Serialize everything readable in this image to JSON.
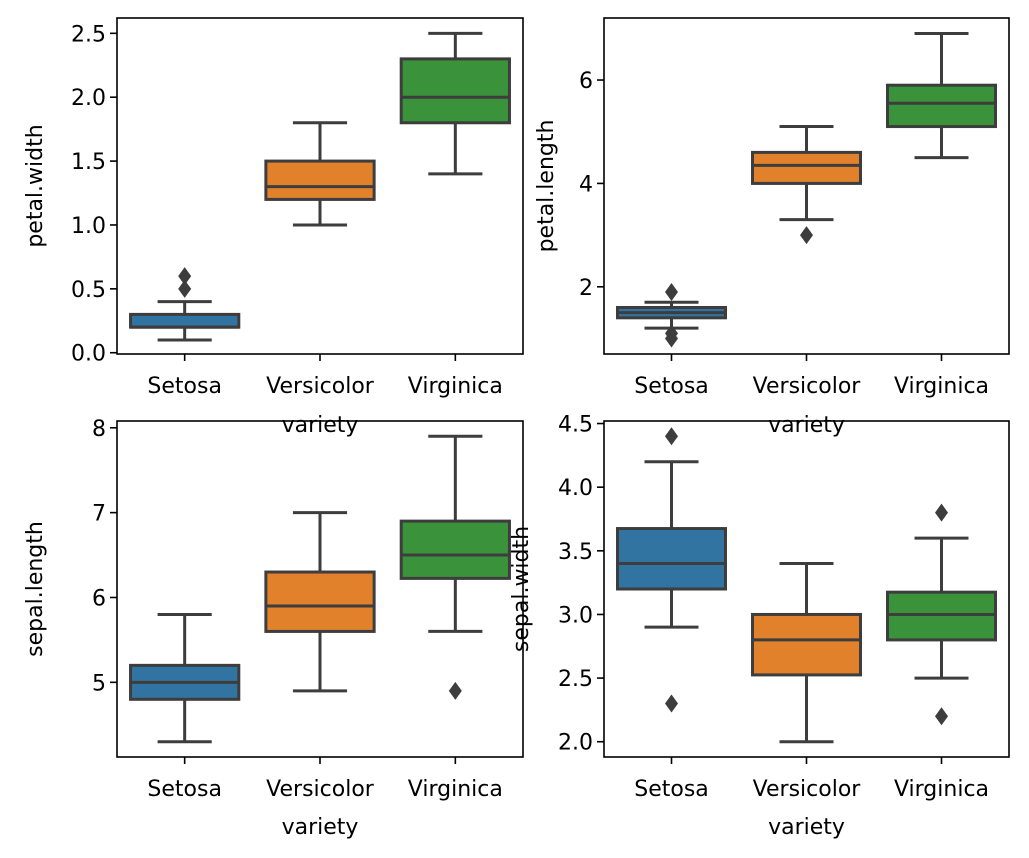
{
  "colors": {
    "Setosa": "#3274a1",
    "Versicolor": "#e1812c",
    "Virginica": "#3a923a",
    "line": "#3d3d3d"
  },
  "chart_data": [
    {
      "type": "box",
      "categories": [
        "Setosa",
        "Versicolor",
        "Virginica"
      ],
      "xlabel": "variety",
      "ylabel": "petal.width",
      "ylim": [
        -0.01,
        2.62
      ],
      "yticks": [
        {
          "value": 0.0,
          "label": "0.0"
        },
        {
          "value": 0.5,
          "label": "0.5"
        },
        {
          "value": 1.0,
          "label": "1.0"
        },
        {
          "value": 1.5,
          "label": "1.5"
        },
        {
          "value": 2.0,
          "label": "2.0"
        },
        {
          "value": 2.5,
          "label": "2.5"
        }
      ],
      "boxes": [
        {
          "name": "Setosa",
          "whislo": 0.1,
          "q1": 0.2,
          "med": 0.2,
          "q3": 0.3,
          "whishi": 0.4,
          "fliers": [
            0.5,
            0.6
          ]
        },
        {
          "name": "Versicolor",
          "whislo": 1.0,
          "q1": 1.2,
          "med": 1.3,
          "q3": 1.5,
          "whishi": 1.8,
          "fliers": []
        },
        {
          "name": "Virginica",
          "whislo": 1.4,
          "q1": 1.8,
          "med": 2.0,
          "q3": 2.3,
          "whishi": 2.5,
          "fliers": []
        }
      ]
    },
    {
      "type": "box",
      "categories": [
        "Setosa",
        "Versicolor",
        "Virginica"
      ],
      "xlabel": "variety",
      "ylabel": "petal.length",
      "ylim": [
        0.7,
        7.2
      ],
      "yticks": [
        {
          "value": 2,
          "label": "2"
        },
        {
          "value": 4,
          "label": "4"
        },
        {
          "value": 6,
          "label": "6"
        }
      ],
      "boxes": [
        {
          "name": "Setosa",
          "whislo": 1.2,
          "q1": 1.4,
          "med": 1.5,
          "q3": 1.6,
          "whishi": 1.7,
          "fliers": [
            1.9,
            1.1,
            1.0
          ]
        },
        {
          "name": "Versicolor",
          "whislo": 3.3,
          "q1": 4.0,
          "med": 4.35,
          "q3": 4.6,
          "whishi": 5.1,
          "fliers": [
            3.0
          ]
        },
        {
          "name": "Virginica",
          "whislo": 4.5,
          "q1": 5.1,
          "med": 5.55,
          "q3": 5.9,
          "whishi": 6.9,
          "fliers": []
        }
      ]
    },
    {
      "type": "box",
      "categories": [
        "Setosa",
        "Versicolor",
        "Virginica"
      ],
      "xlabel": "variety",
      "ylabel": "sepal.length",
      "ylim": [
        4.12,
        8.08
      ],
      "yticks": [
        {
          "value": 5,
          "label": "5"
        },
        {
          "value": 6,
          "label": "6"
        },
        {
          "value": 7,
          "label": "7"
        },
        {
          "value": 8,
          "label": "8"
        }
      ],
      "boxes": [
        {
          "name": "Setosa",
          "whislo": 4.3,
          "q1": 4.8,
          "med": 5.0,
          "q3": 5.2,
          "whishi": 5.8,
          "fliers": []
        },
        {
          "name": "Versicolor",
          "whislo": 4.9,
          "q1": 5.6,
          "med": 5.9,
          "q3": 6.3,
          "whishi": 7.0,
          "fliers": []
        },
        {
          "name": "Virginica",
          "whislo": 5.6,
          "q1": 6.225,
          "med": 6.5,
          "q3": 6.9,
          "whishi": 7.9,
          "fliers": [
            4.9
          ]
        }
      ]
    },
    {
      "type": "box",
      "categories": [
        "Setosa",
        "Versicolor",
        "Virginica"
      ],
      "xlabel": "variety",
      "ylabel": "sepal.width",
      "ylim": [
        1.88,
        4.52
      ],
      "yticks": [
        {
          "value": 2.0,
          "label": "2.0"
        },
        {
          "value": 2.5,
          "label": "2.5"
        },
        {
          "value": 3.0,
          "label": "3.0"
        },
        {
          "value": 3.5,
          "label": "3.5"
        },
        {
          "value": 4.0,
          "label": "4.0"
        },
        {
          "value": 4.5,
          "label": "4.5"
        }
      ],
      "boxes": [
        {
          "name": "Setosa",
          "whislo": 2.9,
          "q1": 3.2,
          "med": 3.4,
          "q3": 3.675,
          "whishi": 4.2,
          "fliers": [
            4.4,
            2.3
          ]
        },
        {
          "name": "Versicolor",
          "whislo": 2.0,
          "q1": 2.525,
          "med": 2.8,
          "q3": 3.0,
          "whishi": 3.4,
          "fliers": []
        },
        {
          "name": "Virginica",
          "whislo": 2.5,
          "q1": 2.8,
          "med": 3.0,
          "q3": 3.175,
          "whishi": 3.6,
          "fliers": [
            3.8,
            2.2
          ]
        }
      ]
    }
  ]
}
